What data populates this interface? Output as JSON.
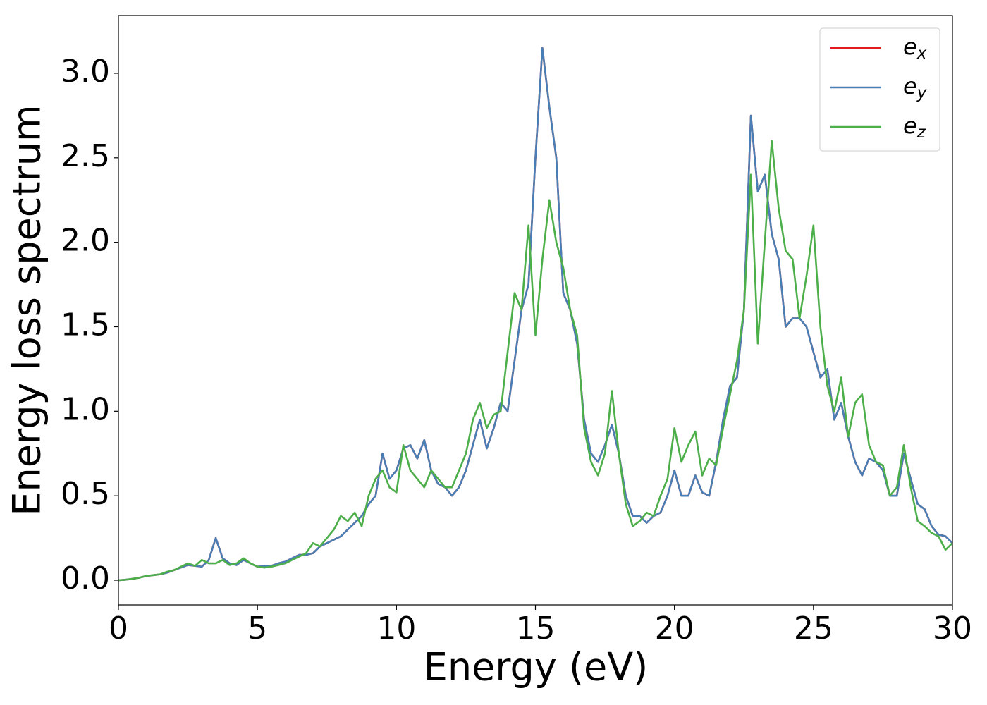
{
  "chart_data": {
    "type": "line",
    "xlabel": "Energy (eV)",
    "ylabel": "Energy loss spectrum",
    "x": [
      0,
      0.25,
      0.5,
      0.75,
      1,
      1.25,
      1.5,
      1.75,
      2,
      2.25,
      2.5,
      2.75,
      3,
      3.25,
      3.5,
      3.75,
      4,
      4.25,
      4.5,
      4.75,
      5,
      5.25,
      5.5,
      5.75,
      6,
      6.25,
      6.5,
      6.75,
      7,
      7.25,
      7.5,
      7.75,
      8,
      8.25,
      8.5,
      8.75,
      9,
      9.25,
      9.5,
      9.75,
      10,
      10.25,
      10.5,
      10.75,
      11,
      11.25,
      11.5,
      11.75,
      12,
      12.25,
      12.5,
      12.75,
      13,
      13.25,
      13.5,
      13.75,
      14,
      14.25,
      14.5,
      14.75,
      15,
      15.25,
      15.5,
      15.75,
      16,
      16.25,
      16.5,
      16.75,
      17,
      17.25,
      17.5,
      17.75,
      18,
      18.25,
      18.5,
      18.75,
      19,
      19.25,
      19.5,
      19.75,
      20,
      20.25,
      20.5,
      20.75,
      21,
      21.25,
      21.5,
      21.75,
      22,
      22.25,
      22.5,
      22.75,
      23,
      23.25,
      23.5,
      23.75,
      24,
      24.25,
      24.5,
      24.75,
      25,
      25.25,
      25.5,
      25.75,
      26,
      26.25,
      26.5,
      26.75,
      27,
      27.25,
      27.5,
      27.75,
      28,
      28.25,
      28.5,
      28.75,
      29,
      29.25,
      29.5,
      29.75,
      30
    ],
    "series": [
      {
        "name": "e_x",
        "color": "#e41a1c",
        "values": [
          0,
          0.003,
          0.008,
          0.015,
          0.025,
          0.03,
          0.035,
          0.045,
          0.06,
          0.075,
          0.09,
          0.085,
          0.08,
          0.12,
          0.25,
          0.13,
          0.1,
          0.09,
          0.12,
          0.1,
          0.08,
          0.085,
          0.085,
          0.1,
          0.11,
          0.13,
          0.15,
          0.15,
          0.16,
          0.2,
          0.22,
          0.24,
          0.26,
          0.3,
          0.34,
          0.38,
          0.45,
          0.5,
          0.75,
          0.6,
          0.65,
          0.78,
          0.8,
          0.72,
          0.83,
          0.65,
          0.57,
          0.55,
          0.5,
          0.55,
          0.65,
          0.8,
          0.95,
          0.78,
          0.9,
          1.05,
          1.0,
          1.3,
          1.6,
          1.75,
          2.5,
          3.15,
          2.8,
          2.5,
          1.7,
          1.6,
          1.4,
          0.95,
          0.75,
          0.7,
          0.8,
          0.92,
          0.75,
          0.5,
          0.38,
          0.38,
          0.34,
          0.38,
          0.4,
          0.5,
          0.65,
          0.5,
          0.5,
          0.62,
          0.52,
          0.5,
          0.7,
          0.95,
          1.15,
          1.2,
          1.6,
          2.75,
          2.3,
          2.4,
          2.05,
          1.9,
          1.5,
          1.55,
          1.55,
          1.5,
          1.35,
          1.2,
          1.25,
          0.95,
          1.05,
          0.85,
          0.7,
          0.62,
          0.72,
          0.7,
          0.65,
          0.5,
          0.5,
          0.75,
          0.6,
          0.45,
          0.42,
          0.32,
          0.27,
          0.26,
          0.22
        ]
      },
      {
        "name": "e_y",
        "color": "#4a7fb5",
        "values": [
          0,
          0.003,
          0.008,
          0.015,
          0.025,
          0.03,
          0.035,
          0.045,
          0.06,
          0.075,
          0.09,
          0.085,
          0.08,
          0.12,
          0.25,
          0.13,
          0.1,
          0.09,
          0.12,
          0.1,
          0.08,
          0.085,
          0.085,
          0.1,
          0.11,
          0.13,
          0.15,
          0.15,
          0.16,
          0.2,
          0.22,
          0.24,
          0.26,
          0.3,
          0.34,
          0.38,
          0.45,
          0.5,
          0.75,
          0.6,
          0.65,
          0.78,
          0.8,
          0.72,
          0.83,
          0.65,
          0.57,
          0.55,
          0.5,
          0.55,
          0.65,
          0.8,
          0.95,
          0.78,
          0.9,
          1.05,
          1.0,
          1.3,
          1.6,
          1.75,
          2.5,
          3.15,
          2.8,
          2.5,
          1.7,
          1.6,
          1.4,
          0.95,
          0.75,
          0.7,
          0.8,
          0.92,
          0.75,
          0.5,
          0.38,
          0.38,
          0.34,
          0.38,
          0.4,
          0.5,
          0.65,
          0.5,
          0.5,
          0.62,
          0.52,
          0.5,
          0.7,
          0.95,
          1.15,
          1.2,
          1.6,
          2.75,
          2.3,
          2.4,
          2.05,
          1.9,
          1.5,
          1.55,
          1.55,
          1.5,
          1.35,
          1.2,
          1.25,
          0.95,
          1.05,
          0.85,
          0.7,
          0.62,
          0.72,
          0.7,
          0.65,
          0.5,
          0.5,
          0.75,
          0.6,
          0.45,
          0.42,
          0.32,
          0.27,
          0.26,
          0.22
        ]
      },
      {
        "name": "e_z",
        "color": "#4daf4a",
        "values": [
          0,
          0.003,
          0.008,
          0.015,
          0.025,
          0.03,
          0.035,
          0.05,
          0.06,
          0.08,
          0.1,
          0.085,
          0.12,
          0.1,
          0.1,
          0.12,
          0.09,
          0.1,
          0.13,
          0.1,
          0.08,
          0.075,
          0.08,
          0.09,
          0.1,
          0.12,
          0.14,
          0.16,
          0.22,
          0.2,
          0.25,
          0.3,
          0.38,
          0.35,
          0.4,
          0.32,
          0.5,
          0.6,
          0.65,
          0.55,
          0.52,
          0.8,
          0.65,
          0.6,
          0.55,
          0.65,
          0.6,
          0.55,
          0.55,
          0.65,
          0.75,
          0.95,
          1.05,
          0.9,
          0.98,
          1.0,
          1.35,
          1.7,
          1.6,
          2.1,
          1.45,
          1.9,
          2.25,
          2.0,
          1.85,
          1.6,
          1.45,
          0.9,
          0.7,
          0.62,
          0.75,
          1.12,
          0.75,
          0.45,
          0.32,
          0.35,
          0.4,
          0.38,
          0.5,
          0.6,
          0.9,
          0.7,
          0.8,
          0.88,
          0.62,
          0.72,
          0.68,
          0.9,
          1.1,
          1.3,
          1.6,
          2.4,
          1.4,
          2.0,
          2.6,
          2.2,
          1.95,
          1.9,
          1.55,
          1.8,
          2.1,
          1.5,
          1.15,
          1.0,
          1.2,
          0.85,
          1.05,
          1.1,
          0.8,
          0.7,
          0.68,
          0.5,
          0.55,
          0.8,
          0.55,
          0.35,
          0.32,
          0.28,
          0.26,
          0.18,
          0.22
        ]
      }
    ],
    "xlim": [
      0,
      30
    ],
    "xticks": [
      0,
      5,
      10,
      15,
      20,
      25,
      30
    ],
    "ylim": [
      -0.146,
      3.342
    ],
    "yticks": [
      {
        "value": 0,
        "label": "0.0"
      },
      0.5,
      {
        "value": 1,
        "label": "1.0"
      },
      1.5,
      {
        "value": 2,
        "label": "2.0"
      },
      2.5,
      {
        "value": 3,
        "label": "3.0"
      }
    ],
    "legend": "upper right",
    "grid": false
  }
}
